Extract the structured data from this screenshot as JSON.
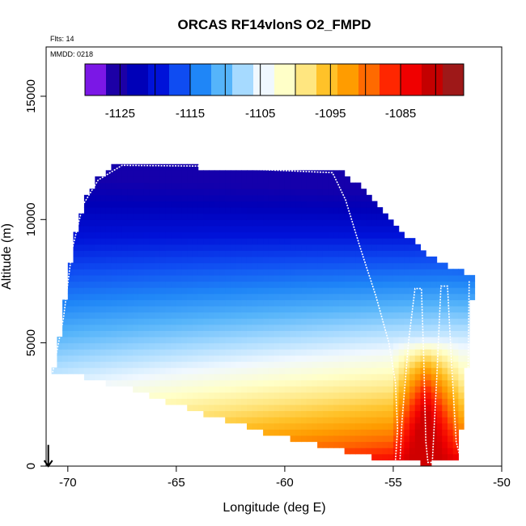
{
  "chart_data": {
    "type": "heatmap",
    "title": "ORCAS RF14vlonS O2_FMPD",
    "flights_note": "Flts: 14",
    "date_note": "MMDD: 0218",
    "xlabel": "Longitude (deg E)",
    "ylabel": "Altitude (m)",
    "xlim": [
      -71.0,
      -50.0
    ],
    "ylim": [
      0,
      17000
    ],
    "x_ticks": [
      -70,
      -65,
      -60,
      -55,
      -50
    ],
    "x_tick_labels": [
      "-70",
      "-65",
      "-60",
      "-55",
      "-50"
    ],
    "y_ticks": [
      0,
      5000,
      10000,
      15000
    ],
    "y_tick_labels": [
      "0",
      "5000",
      "10000",
      "15000"
    ],
    "colorbar": {
      "vmin": -1130,
      "vmax": -1076,
      "ticks": [
        -1125,
        -1115,
        -1105,
        -1095,
        -1085
      ],
      "tick_labels": [
        "-1125",
        "-1115",
        "-1105",
        "-1095",
        "-1085"
      ],
      "colors": [
        "#7b17e6",
        "#1c00a6",
        "#0000b8",
        "#0012d9",
        "#0f4cf2",
        "#1f86f7",
        "#55b4fa",
        "#a6daff",
        "#f0f8ff",
        "#ffffc8",
        "#ffe680",
        "#ffc229",
        "#ff9c00",
        "#ff6a00",
        "#ff2600",
        "#f00000",
        "#c40000",
        "#9e1818"
      ]
    },
    "field_model": {
      "description": "O2_FMPD cross-section, value varies with altitude and longitude",
      "value_top": -1126,
      "value_bottom_west": -1095,
      "value_bottom_east": -1080,
      "plume_center_lon": -53.5,
      "plume_max": -1080
    },
    "domain_outline": [
      {
        "lon": -70.7,
        "alt": 3800
      },
      {
        "lon": -70.4,
        "alt": 5000
      },
      {
        "lon": -70.0,
        "alt": 7700
      },
      {
        "lon": -69.6,
        "alt": 9700
      },
      {
        "lon": -69.1,
        "alt": 11000
      },
      {
        "lon": -68.5,
        "alt": 11800
      },
      {
        "lon": -67.8,
        "alt": 12200
      },
      {
        "lon": -57.5,
        "alt": 12000
      },
      {
        "lon": -56.5,
        "alt": 11300
      },
      {
        "lon": -55.5,
        "alt": 10300
      },
      {
        "lon": -54.3,
        "alt": 9300
      },
      {
        "lon": -53.0,
        "alt": 8300
      },
      {
        "lon": -51.3,
        "alt": 7700
      },
      {
        "lon": -51.6,
        "alt": 4300
      },
      {
        "lon": -52.0,
        "alt": 300
      },
      {
        "lon": -53.5,
        "alt": 100
      },
      {
        "lon": -55.5,
        "alt": 300
      },
      {
        "lon": -58.0,
        "alt": 800
      },
      {
        "lon": -61.0,
        "alt": 1400
      },
      {
        "lon": -64.0,
        "alt": 2200
      },
      {
        "lon": -67.0,
        "alt": 3100
      },
      {
        "lon": -69.5,
        "alt": 3700
      }
    ],
    "flight_track": [
      {
        "lon": -70.7,
        "alt": 3800
      },
      {
        "lon": -70.2,
        "alt": 6000
      },
      {
        "lon": -69.8,
        "alt": 8800
      },
      {
        "lon": -69.3,
        "alt": 10600
      },
      {
        "lon": -68.6,
        "alt": 11600
      },
      {
        "lon": -67.5,
        "alt": 12200
      },
      {
        "lon": -61.8,
        "alt": 12150
      },
      {
        "lon": -61.8,
        "alt": 12050
      },
      {
        "lon": -57.8,
        "alt": 11900
      },
      {
        "lon": -57.2,
        "alt": 10800
      },
      {
        "lon": -56.5,
        "alt": 8800
      },
      {
        "lon": -55.8,
        "alt": 6900
      },
      {
        "lon": -55.2,
        "alt": 5000
      },
      {
        "lon": -54.9,
        "alt": 3400
      },
      {
        "lon": -54.8,
        "alt": 1500
      },
      {
        "lon": -54.9,
        "alt": 200
      },
      {
        "lon": -54.7,
        "alt": 50
      },
      {
        "lon": -54.6,
        "alt": 1800
      },
      {
        "lon": -54.3,
        "alt": 5000
      },
      {
        "lon": -54.0,
        "alt": 7200
      },
      {
        "lon": -53.7,
        "alt": 7200
      },
      {
        "lon": -53.6,
        "alt": 4500
      },
      {
        "lon": -53.5,
        "alt": 1000
      },
      {
        "lon": -53.4,
        "alt": 150
      },
      {
        "lon": -53.2,
        "alt": 150
      },
      {
        "lon": -53.0,
        "alt": 3500
      },
      {
        "lon": -52.8,
        "alt": 7300
      },
      {
        "lon": -52.5,
        "alt": 7300
      },
      {
        "lon": -52.3,
        "alt": 4000
      },
      {
        "lon": -52.1,
        "alt": 1000
      },
      {
        "lon": -51.9,
        "alt": 300
      },
      {
        "lon": -51.6,
        "alt": 300
      },
      {
        "lon": -51.5,
        "alt": 7500
      }
    ],
    "arrow_marker": {
      "lon": -70.9,
      "alt_start": 600,
      "alt_end": 0
    }
  }
}
